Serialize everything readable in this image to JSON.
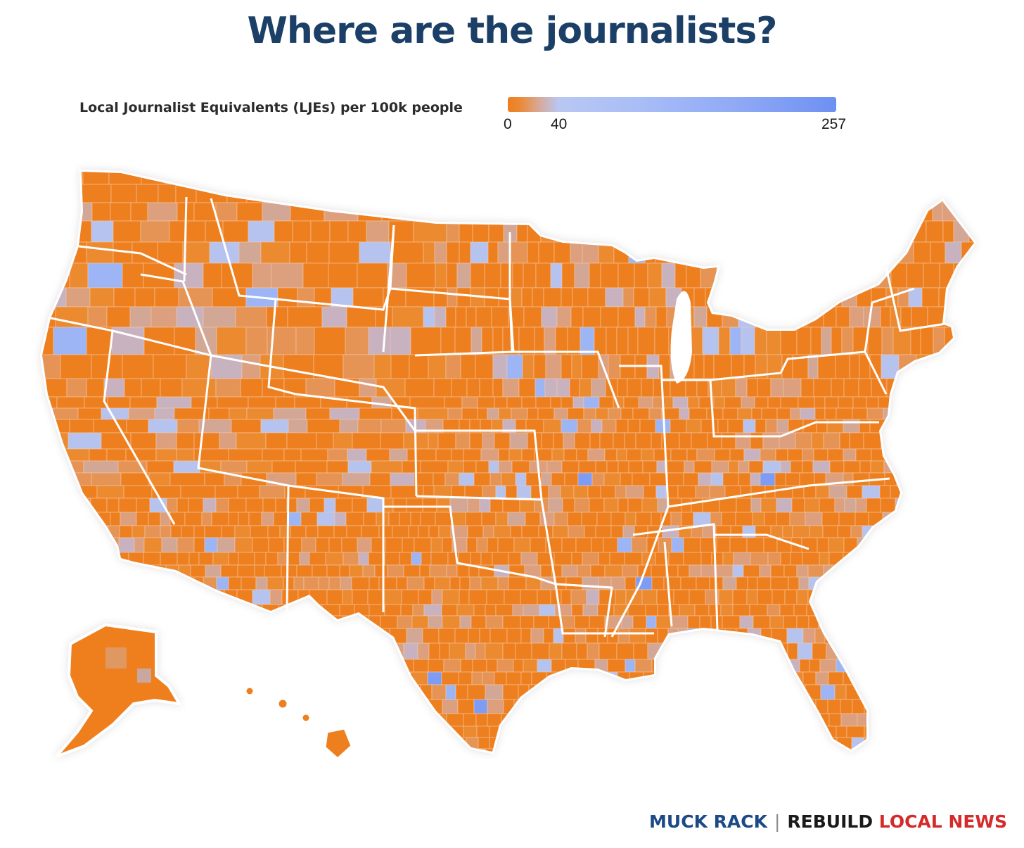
{
  "title": "Where are the journalists?",
  "legend": {
    "label": "Local Journalist Equivalents (LJEs) per 100k people",
    "min": 0,
    "mid": 40,
    "max": 257,
    "tick_min": "0",
    "tick_mid": "40",
    "tick_max": "257",
    "colors": {
      "low": "#ee7f1f",
      "mid": "#b9c7f2",
      "high": "#6d90f2"
    }
  },
  "map": {
    "region": "United States by county",
    "dominant_color": "#ee7f1f",
    "insets": [
      "Alaska",
      "Hawaii"
    ]
  },
  "footer": {
    "brand1": "MUCK RACK",
    "separator": "|",
    "brand2a": "REBUILD",
    "brand2b": "LOCAL NEWS"
  }
}
